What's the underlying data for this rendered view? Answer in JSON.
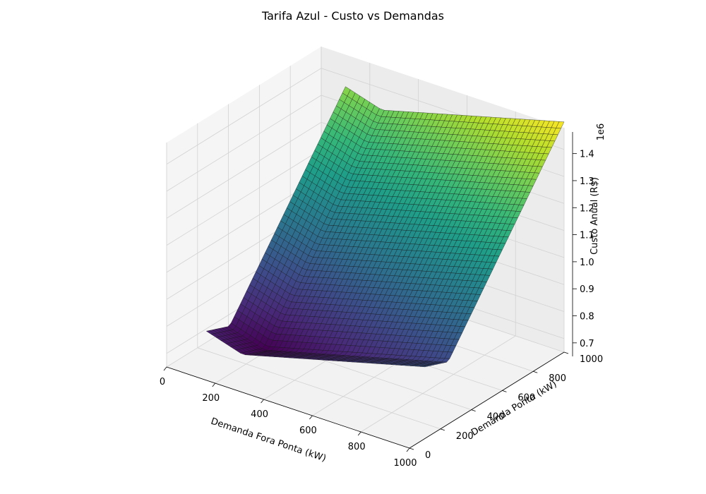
{
  "chart_data": {
    "type": "surface",
    "title": "Tarifa Azul - Custo vs Demandas",
    "xlabel": "Demanda Fora Ponta (kW)",
    "ylabel": "Demanda Ponta (kW)",
    "zlabel": "Custo Anual (R$)",
    "zscale_label": "1e6",
    "x_ticks": [
      0,
      200,
      400,
      600,
      800,
      1000
    ],
    "y_ticks": [
      0,
      200,
      400,
      600,
      800,
      1000
    ],
    "z_ticks": [
      "0.7",
      "0.8",
      "0.9",
      "1.0",
      "1.1",
      "1.2",
      "1.3",
      "1.4"
    ],
    "xlim": [
      0,
      1000
    ],
    "ylim": [
      0,
      1000
    ],
    "zlim": [
      650000,
      1480000
    ],
    "grid": true,
    "colormap": "viridis",
    "surface": {
      "x_range": [
        100,
        1000
      ],
      "y_range": [
        100,
        1000
      ],
      "grid_size": 45,
      "corner_values": {
        "x100_y100": 770000,
        "x1000_y100": 880000,
        "x100_y1000": 1320000,
        "x1000_y1000": 1460000
      },
      "minimum": {
        "x": 250,
        "y": 250,
        "z": 700000
      }
    }
  }
}
